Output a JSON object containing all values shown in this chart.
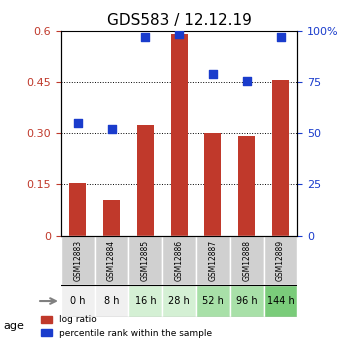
{
  "title": "GDS583 / 12.12.19",
  "categories": [
    "GSM12883",
    "GSM12884",
    "GSM12885",
    "GSM12886",
    "GSM12887",
    "GSM12888",
    "GSM12889"
  ],
  "age_labels": [
    "0 h",
    "8 h",
    "16 h",
    "28 h",
    "52 h",
    "96 h",
    "144 h"
  ],
  "log_ratio": [
    0.155,
    0.105,
    0.325,
    0.59,
    0.302,
    0.293,
    0.455
  ],
  "percentile_rank": [
    0.55,
    0.52,
    0.97,
    0.985,
    0.79,
    0.755,
    0.97
  ],
  "bar_color": "#c0392b",
  "dot_color": "#1a3ccc",
  "ylim_left": [
    0,
    0.6
  ],
  "ylim_right": [
    0,
    1.0
  ],
  "yticks_left": [
    0,
    0.15,
    0.3,
    0.45,
    0.6
  ],
  "ytick_labels_left": [
    "0",
    "0.15",
    "0.30",
    "0.45",
    "0.6"
  ],
  "yticks_right": [
    0,
    0.25,
    0.5,
    0.75,
    1.0
  ],
  "ytick_labels_right": [
    "0",
    "25",
    "50",
    "75",
    "100%"
  ],
  "age_colors": [
    "#f0f0f0",
    "#f0f0f0",
    "#d4f0d4",
    "#d4f0d4",
    "#a8e0a8",
    "#a8e0a8",
    "#7acc7a"
  ],
  "grid_color": "#000000",
  "xlabel_color_left": "#c0392b",
  "xlabel_color_right": "#1a3ccc",
  "bg_plot": "#ffffff",
  "bg_label": "#d0d0d0",
  "bar_width": 0.5
}
